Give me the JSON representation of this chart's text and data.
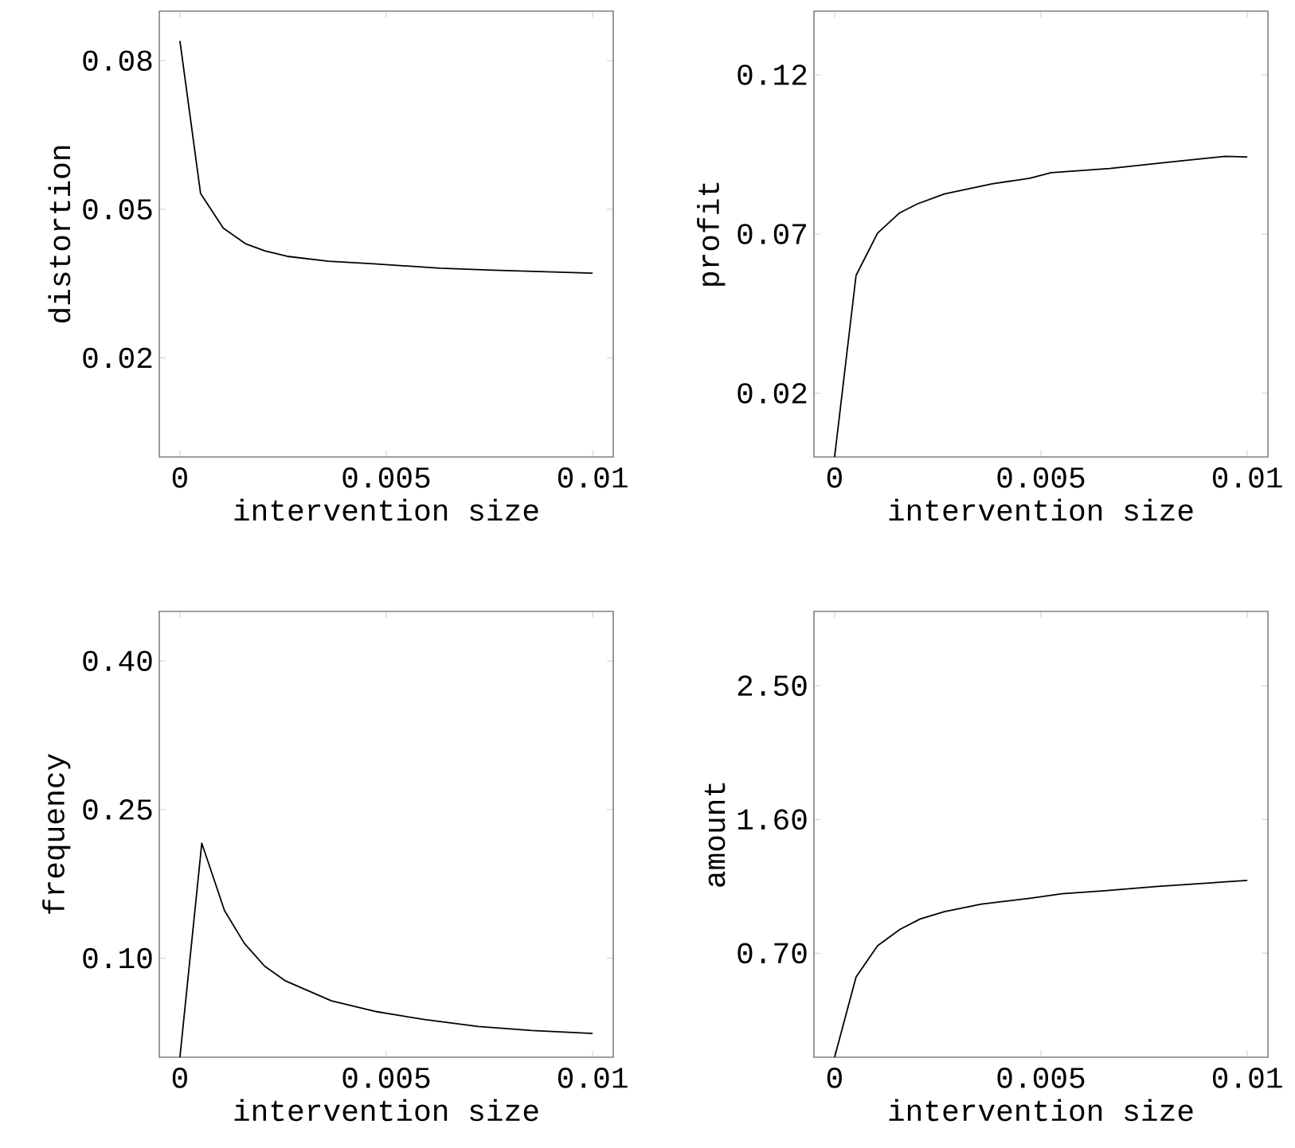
{
  "chart_data": [
    {
      "type": "line",
      "xlabel": "intervention size",
      "ylabel": "distortion",
      "color": "#000000",
      "xlim": [
        -0.0005,
        0.0105
      ],
      "ylim": [
        0,
        0.09
      ],
      "xticks": [
        0,
        0.005,
        0.01
      ],
      "yticks": [
        0.02,
        0.05,
        0.08
      ],
      "x": [
        0,
        0.0005,
        0.00105,
        0.0016,
        0.00206,
        0.0026,
        0.0036,
        0.0047,
        0.0063,
        0.0076,
        0.01
      ],
      "values": [
        0.084,
        0.0532,
        0.0462,
        0.043,
        0.0416,
        0.0405,
        0.0395,
        0.039,
        0.0381,
        0.0377,
        0.0371
      ]
    },
    {
      "type": "line",
      "xlabel": "intervention size",
      "ylabel": "profit",
      "color": "#000000",
      "xlim": [
        -0.0005,
        0.0105
      ],
      "ylim": [
        0,
        0.14
      ],
      "xticks": [
        0,
        0.005,
        0.01
      ],
      "yticks": [
        0.02,
        0.07,
        0.12
      ],
      "x": [
        0,
        0.00052,
        0.00104,
        0.00158,
        0.00201,
        0.00266,
        0.00382,
        0.00473,
        0.00525,
        0.00667,
        0.00797,
        0.00946,
        0.01
      ],
      "values": [
        0,
        0.057,
        0.0703,
        0.0767,
        0.0795,
        0.0826,
        0.0858,
        0.0875,
        0.0893,
        0.0906,
        0.0924,
        0.0944,
        0.0942
      ]
    },
    {
      "type": "line",
      "xlabel": "intervention size",
      "ylabel": "frequency",
      "color": "#000000",
      "xlim": [
        -0.0005,
        0.0105
      ],
      "ylim": [
        0,
        0.45
      ],
      "xticks": [
        0,
        0.005,
        0.01
      ],
      "yticks": [
        {
          "value": 0.1,
          "label": "0.10"
        },
        0.25,
        {
          "value": 0.4,
          "label": "0.40"
        }
      ],
      "x": [
        0,
        0.00053,
        0.00108,
        0.00156,
        0.00205,
        0.00256,
        0.00367,
        0.00477,
        0.00593,
        0.00723,
        0.00852,
        0.01
      ],
      "values": [
        0,
        0.216,
        0.148,
        0.115,
        0.092,
        0.077,
        0.057,
        0.046,
        0.038,
        0.031,
        0.027,
        0.024
      ]
    },
    {
      "type": "line",
      "xlabel": "intervention size",
      "ylabel": "amount",
      "color": "#000000",
      "xlim": [
        -0.0005,
        0.0105
      ],
      "ylim": [
        0,
        3
      ],
      "xticks": [
        0,
        0.005,
        0.01
      ],
      "yticks": [
        {
          "value": 0.7,
          "label": "0.70"
        },
        {
          "value": 1.6,
          "label": "1.60"
        },
        {
          "value": 2.5,
          "label": "2.50"
        }
      ],
      "x": [
        0,
        0.00052,
        0.00104,
        0.00158,
        0.00207,
        0.00266,
        0.00356,
        0.00473,
        0.00551,
        0.00654,
        0.00784,
        0.01
      ],
      "values": [
        0,
        0.54,
        0.75,
        0.86,
        0.93,
        0.98,
        1.03,
        1.07,
        1.1,
        1.12,
        1.15,
        1.19
      ]
    }
  ]
}
